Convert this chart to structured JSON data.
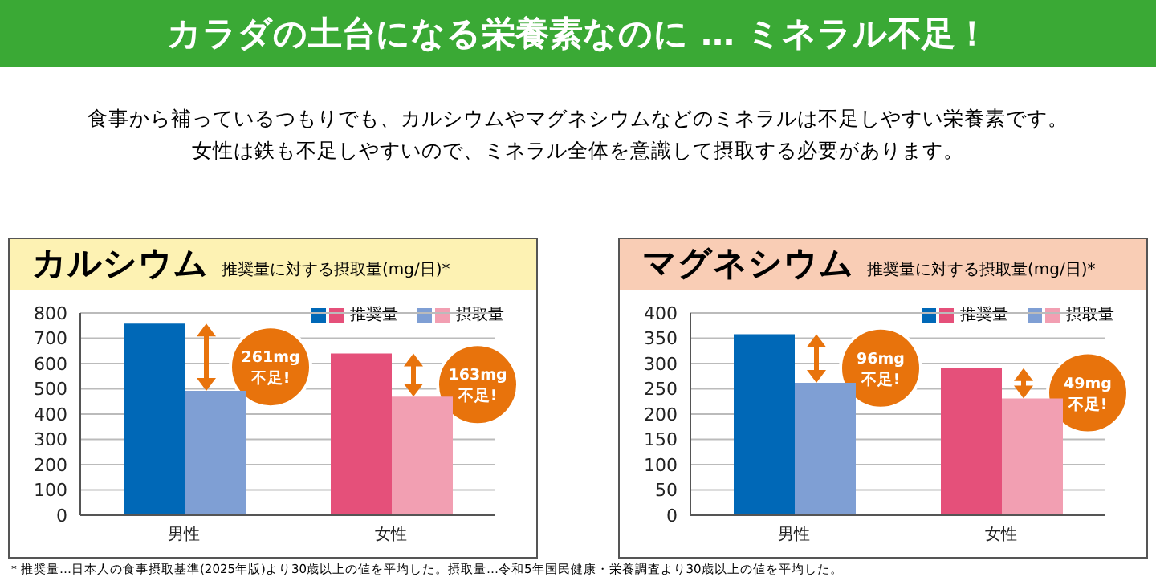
{
  "chart_data": [
    {
      "type": "bar",
      "title": "カルシウム",
      "subtitle": "推奨量に対する摂取量(mg/日)*",
      "categories": [
        "男性",
        "女性"
      ],
      "series": [
        {
          "name": "推奨量",
          "colors": [
            "#0068b7",
            "#e5507a"
          ],
          "values": [
            758,
            640
          ]
        },
        {
          "name": "摂取量",
          "colors": [
            "#7f9fd4",
            "#f29fb2"
          ],
          "values": [
            492,
            469
          ]
        }
      ],
      "ylim": [
        0,
        800
      ],
      "yticks": [
        0,
        100,
        200,
        300,
        400,
        500,
        600,
        700,
        800
      ],
      "grid": "y",
      "legend": "top right",
      "annotations": [
        "261mg\n不足!",
        "163mg\n不足!",
        "カラダの土台になる栄養素なのに … ミネラル不足！",
        "食事から補っているつもりでも、カルシウムやマグネシウムなどのミネラルは不足しやすい栄養素です。",
        "女性は鉄も不足しやすいので、ミネラル全体を意識して摂取する必要があります。"
      ]
    },
    {
      "type": "bar",
      "title": "マグネシウム",
      "subtitle": "推奨量に対する摂取量(mg/日)*",
      "categories": [
        "男性",
        "女性"
      ],
      "series": [
        {
          "name": "推奨量",
          "colors": [
            "#0068b7",
            "#e5507a"
          ],
          "values": [
            358,
            291
          ]
        },
        {
          "name": "摂取量",
          "colors": [
            "#7f9fd4",
            "#f29fb2"
          ],
          "values": [
            262,
            231
          ]
        }
      ],
      "ylim": [
        0,
        400
      ],
      "yticks": [
        0,
        50,
        100,
        150,
        200,
        250,
        300,
        350,
        400
      ],
      "grid": "y",
      "legend": "top right",
      "annotations": [
        "96mg\n不足!",
        "49mg\n不足!",
        "＊推奨量…日本人の食事摂取基準(2025年版)より30歳以上の値を平均した。摂取量…令和5年国民健康・栄養調査より30歳以上の値を平均した。"
      ]
    }
  ]
}
